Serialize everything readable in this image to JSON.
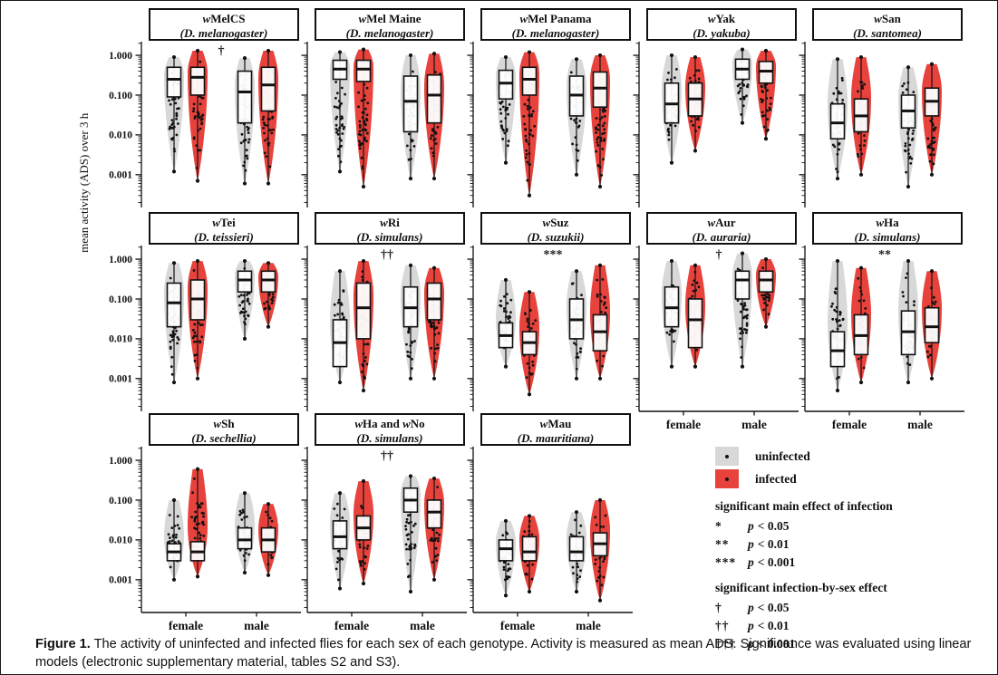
{
  "figure": {
    "y_axis_label": "mean activity (ADS) over 3 h",
    "y_ticks": [
      "1.000",
      "0.100",
      "0.010",
      "0.001"
    ],
    "x_categories": [
      "female",
      "male"
    ]
  },
  "legend": {
    "items": [
      {
        "key": "uninfected",
        "label": "uninfected",
        "color": "#d8d8d8"
      },
      {
        "key": "infected",
        "label": "infected",
        "color": "#e8423c"
      }
    ],
    "main_effect_heading": "significant main effect of infection",
    "main_effect_rows": [
      {
        "sym": "*",
        "p_var": "p",
        "cond": "< 0.05"
      },
      {
        "sym": "**",
        "p_var": "p",
        "cond": "< 0.01"
      },
      {
        "sym": "***",
        "p_var": "p",
        "cond": "< 0.001"
      }
    ],
    "interaction_heading": "significant infection-by-sex effect",
    "interaction_rows": [
      {
        "sym": "†",
        "p_var": "p",
        "cond": "< 0.05"
      },
      {
        "sym": "††",
        "p_var": "p",
        "cond": "< 0.01"
      },
      {
        "sym": "†††",
        "p_var": "p",
        "cond": "< 0.001"
      }
    ]
  },
  "caption": {
    "label": "Figure 1.",
    "text": " The activity of uninfected and infected flies for each sex of each genotype. Activity is measured as mean ADS. Significance was evaluated using linear models (electronic supplementary material, tables S2 and S3)."
  },
  "chart_data": {
    "type": "violin-box",
    "y_scale": "log",
    "ylim": [
      0.00015,
      2.2
    ],
    "ylabel": "mean activity (ADS) over 3 h",
    "y_tick_values": [
      1.0,
      0.1,
      0.01,
      0.001
    ],
    "y_tick_labels": [
      "1.000",
      "0.100",
      "0.010",
      "0.001"
    ],
    "x_categories": [
      "female",
      "male"
    ],
    "series_colors": {
      "uninfected": "#d8d8d8",
      "infected": "#e8423c"
    },
    "grid_columns": 5,
    "panels": [
      {
        "id": "wmelcs",
        "title_segments": [
          {
            "t": "w",
            "i": true
          },
          {
            "t": "MelCS"
          }
        ],
        "species": "(D. melanogaster)",
        "significance": "†",
        "violins": [
          {
            "group": "female",
            "infection": "uninfected",
            "min": 0.0012,
            "max": 0.9,
            "q1": 0.09,
            "median": 0.25,
            "q3": 0.5
          },
          {
            "group": "female",
            "infection": "infected",
            "min": 0.0007,
            "max": 1.3,
            "q1": 0.1,
            "median": 0.28,
            "q3": 0.5
          },
          {
            "group": "male",
            "infection": "uninfected",
            "min": 0.0006,
            "max": 0.85,
            "q1": 0.02,
            "median": 0.12,
            "q3": 0.4
          },
          {
            "group": "male",
            "infection": "infected",
            "min": 0.0006,
            "max": 1.3,
            "q1": 0.04,
            "median": 0.18,
            "q3": 0.5
          }
        ]
      },
      {
        "id": "wmel-maine",
        "title_segments": [
          {
            "t": "w",
            "i": true
          },
          {
            "t": "Mel Maine"
          }
        ],
        "species": "(D. melanogaster)",
        "significance": "",
        "violins": [
          {
            "group": "female",
            "infection": "uninfected",
            "min": 0.0012,
            "max": 1.2,
            "q1": 0.25,
            "median": 0.45,
            "q3": 0.75
          },
          {
            "group": "female",
            "infection": "infected",
            "min": 0.0005,
            "max": 1.4,
            "q1": 0.22,
            "median": 0.45,
            "q3": 0.75
          },
          {
            "group": "male",
            "infection": "uninfected",
            "min": 0.0008,
            "max": 1.0,
            "q1": 0.012,
            "median": 0.07,
            "q3": 0.3
          },
          {
            "group": "male",
            "infection": "infected",
            "min": 0.0008,
            "max": 1.1,
            "q1": 0.02,
            "median": 0.1,
            "q3": 0.32
          }
        ]
      },
      {
        "id": "wmel-panama",
        "title_segments": [
          {
            "t": "w",
            "i": true
          },
          {
            "t": "Mel Panama"
          }
        ],
        "species": "(D. melanogaster)",
        "significance": "",
        "violins": [
          {
            "group": "female",
            "infection": "uninfected",
            "min": 0.002,
            "max": 0.9,
            "q1": 0.08,
            "median": 0.2,
            "q3": 0.42
          },
          {
            "group": "female",
            "infection": "infected",
            "min": 0.0003,
            "max": 1.2,
            "q1": 0.1,
            "median": 0.25,
            "q3": 0.5
          },
          {
            "group": "male",
            "infection": "uninfected",
            "min": 0.001,
            "max": 0.8,
            "q1": 0.03,
            "median": 0.1,
            "q3": 0.3
          },
          {
            "group": "male",
            "infection": "infected",
            "min": 0.0005,
            "max": 1.0,
            "q1": 0.05,
            "median": 0.15,
            "q3": 0.38
          }
        ]
      },
      {
        "id": "wyak",
        "title_segments": [
          {
            "t": "w",
            "i": true
          },
          {
            "t": "Yak"
          }
        ],
        "species": "(D. yakuba)",
        "significance": "",
        "violins": [
          {
            "group": "female",
            "infection": "uninfected",
            "min": 0.002,
            "max": 1.0,
            "q1": 0.02,
            "median": 0.06,
            "q3": 0.2
          },
          {
            "group": "female",
            "infection": "infected",
            "min": 0.004,
            "max": 0.9,
            "q1": 0.03,
            "median": 0.08,
            "q3": 0.2
          },
          {
            "group": "male",
            "infection": "uninfected",
            "min": 0.02,
            "max": 1.4,
            "q1": 0.25,
            "median": 0.45,
            "q3": 0.8
          },
          {
            "group": "male",
            "infection": "infected",
            "min": 0.008,
            "max": 1.3,
            "q1": 0.2,
            "median": 0.4,
            "q3": 0.7
          }
        ]
      },
      {
        "id": "wsan",
        "title_segments": [
          {
            "t": "w",
            "i": true
          },
          {
            "t": "San"
          }
        ],
        "species": "(D. santomea)",
        "significance": "",
        "violins": [
          {
            "group": "female",
            "infection": "uninfected",
            "min": 0.0008,
            "max": 0.8,
            "q1": 0.008,
            "median": 0.02,
            "q3": 0.06
          },
          {
            "group": "female",
            "infection": "infected",
            "min": 0.001,
            "max": 0.9,
            "q1": 0.012,
            "median": 0.03,
            "q3": 0.08
          },
          {
            "group": "male",
            "infection": "uninfected",
            "min": 0.0005,
            "max": 0.5,
            "q1": 0.015,
            "median": 0.04,
            "q3": 0.1
          },
          {
            "group": "male",
            "infection": "infected",
            "min": 0.001,
            "max": 0.6,
            "q1": 0.03,
            "median": 0.07,
            "q3": 0.15
          }
        ]
      },
      {
        "id": "wtei",
        "title_segments": [
          {
            "t": "w",
            "i": true
          },
          {
            "t": "Tei"
          }
        ],
        "species": "(D. teissieri)",
        "significance": "",
        "violins": [
          {
            "group": "female",
            "infection": "uninfected",
            "min": 0.0008,
            "max": 0.8,
            "q1": 0.02,
            "median": 0.08,
            "q3": 0.25
          },
          {
            "group": "female",
            "infection": "infected",
            "min": 0.001,
            "max": 0.9,
            "q1": 0.03,
            "median": 0.1,
            "q3": 0.3
          },
          {
            "group": "male",
            "infection": "uninfected",
            "min": 0.01,
            "max": 0.9,
            "q1": 0.15,
            "median": 0.3,
            "q3": 0.5
          },
          {
            "group": "male",
            "infection": "infected",
            "min": 0.02,
            "max": 0.8,
            "q1": 0.15,
            "median": 0.3,
            "q3": 0.5
          }
        ]
      },
      {
        "id": "wri",
        "title_segments": [
          {
            "t": "w",
            "i": true
          },
          {
            "t": "Ri"
          }
        ],
        "species": "(D. simulans)",
        "significance": "††",
        "violins": [
          {
            "group": "female",
            "infection": "uninfected",
            "min": 0.0008,
            "max": 0.5,
            "q1": 0.002,
            "median": 0.008,
            "q3": 0.03
          },
          {
            "group": "female",
            "infection": "infected",
            "min": 0.0005,
            "max": 0.9,
            "q1": 0.01,
            "median": 0.06,
            "q3": 0.25
          },
          {
            "group": "male",
            "infection": "uninfected",
            "min": 0.001,
            "max": 0.7,
            "q1": 0.02,
            "median": 0.06,
            "q3": 0.2
          },
          {
            "group": "male",
            "infection": "infected",
            "min": 0.001,
            "max": 0.6,
            "q1": 0.03,
            "median": 0.1,
            "q3": 0.25
          }
        ]
      },
      {
        "id": "wsuz",
        "title_segments": [
          {
            "t": "w",
            "i": true
          },
          {
            "t": "Suz"
          }
        ],
        "species": "(D. suzukii)",
        "significance": "***",
        "violins": [
          {
            "group": "female",
            "infection": "uninfected",
            "min": 0.002,
            "max": 0.3,
            "q1": 0.006,
            "median": 0.012,
            "q3": 0.025
          },
          {
            "group": "female",
            "infection": "infected",
            "min": 0.0004,
            "max": 0.15,
            "q1": 0.004,
            "median": 0.008,
            "q3": 0.015
          },
          {
            "group": "male",
            "infection": "uninfected",
            "min": 0.001,
            "max": 0.5,
            "q1": 0.01,
            "median": 0.03,
            "q3": 0.1
          },
          {
            "group": "male",
            "infection": "infected",
            "min": 0.001,
            "max": 0.7,
            "q1": 0.005,
            "median": 0.015,
            "q3": 0.04
          }
        ]
      },
      {
        "id": "waur",
        "title_segments": [
          {
            "t": "w",
            "i": true
          },
          {
            "t": "Aur"
          }
        ],
        "species": "(D. auraria)",
        "significance": "†",
        "violins": [
          {
            "group": "female",
            "infection": "uninfected",
            "min": 0.002,
            "max": 0.9,
            "q1": 0.02,
            "median": 0.06,
            "q3": 0.2
          },
          {
            "group": "female",
            "infection": "infected",
            "min": 0.002,
            "max": 0.7,
            "q1": 0.006,
            "median": 0.03,
            "q3": 0.1
          },
          {
            "group": "male",
            "infection": "uninfected",
            "min": 0.002,
            "max": 1.4,
            "q1": 0.1,
            "median": 0.3,
            "q3": 0.5
          },
          {
            "group": "male",
            "infection": "infected",
            "min": 0.02,
            "max": 1.0,
            "q1": 0.15,
            "median": 0.3,
            "q3": 0.5
          }
        ]
      },
      {
        "id": "wha",
        "title_segments": [
          {
            "t": "w",
            "i": true
          },
          {
            "t": "Ha"
          }
        ],
        "species": "(D. simulans)",
        "significance": "**",
        "violins": [
          {
            "group": "female",
            "infection": "uninfected",
            "min": 0.0005,
            "max": 0.9,
            "q1": 0.002,
            "median": 0.005,
            "q3": 0.015
          },
          {
            "group": "female",
            "infection": "infected",
            "min": 0.0008,
            "max": 0.6,
            "q1": 0.004,
            "median": 0.012,
            "q3": 0.04
          },
          {
            "group": "male",
            "infection": "uninfected",
            "min": 0.0008,
            "max": 0.9,
            "q1": 0.004,
            "median": 0.015,
            "q3": 0.05
          },
          {
            "group": "male",
            "infection": "infected",
            "min": 0.001,
            "max": 0.5,
            "q1": 0.008,
            "median": 0.02,
            "q3": 0.06
          }
        ]
      },
      {
        "id": "wsh",
        "title_segments": [
          {
            "t": "w",
            "i": true
          },
          {
            "t": "Sh"
          }
        ],
        "species": "(D. sechellia)",
        "significance": "",
        "violins": [
          {
            "group": "female",
            "infection": "uninfected",
            "min": 0.001,
            "max": 0.1,
            "q1": 0.003,
            "median": 0.005,
            "q3": 0.008
          },
          {
            "group": "female",
            "infection": "infected",
            "min": 0.0012,
            "max": 0.6,
            "q1": 0.003,
            "median": 0.005,
            "q3": 0.009
          },
          {
            "group": "male",
            "infection": "uninfected",
            "min": 0.0015,
            "max": 0.15,
            "q1": 0.006,
            "median": 0.01,
            "q3": 0.02
          },
          {
            "group": "male",
            "infection": "infected",
            "min": 0.0013,
            "max": 0.08,
            "q1": 0.005,
            "median": 0.01,
            "q3": 0.02
          }
        ]
      },
      {
        "id": "wha-and-wno",
        "title_segments": [
          {
            "t": "w",
            "i": true
          },
          {
            "t": "Ha and "
          },
          {
            "t": "w",
            "i": true
          },
          {
            "t": "No"
          }
        ],
        "species": "(D. simulans)",
        "significance": "††",
        "violins": [
          {
            "group": "female",
            "infection": "uninfected",
            "min": 0.0006,
            "max": 0.15,
            "q1": 0.006,
            "median": 0.012,
            "q3": 0.03
          },
          {
            "group": "female",
            "infection": "infected",
            "min": 0.0008,
            "max": 0.3,
            "q1": 0.01,
            "median": 0.02,
            "q3": 0.04
          },
          {
            "group": "male",
            "infection": "uninfected",
            "min": 0.0005,
            "max": 0.4,
            "q1": 0.05,
            "median": 0.1,
            "q3": 0.2
          },
          {
            "group": "male",
            "infection": "infected",
            "min": 0.001,
            "max": 0.35,
            "q1": 0.02,
            "median": 0.05,
            "q3": 0.1
          }
        ]
      },
      {
        "id": "wmau",
        "title_segments": [
          {
            "t": "w",
            "i": true
          },
          {
            "t": "Mau"
          }
        ],
        "species": "(D. mauritiana)",
        "significance": "",
        "violins": [
          {
            "group": "female",
            "infection": "uninfected",
            "min": 0.0004,
            "max": 0.03,
            "q1": 0.003,
            "median": 0.006,
            "q3": 0.01
          },
          {
            "group": "female",
            "infection": "infected",
            "min": 0.0005,
            "max": 0.04,
            "q1": 0.003,
            "median": 0.005,
            "q3": 0.012
          },
          {
            "group": "male",
            "infection": "uninfected",
            "min": 0.0005,
            "max": 0.05,
            "q1": 0.003,
            "median": 0.005,
            "q3": 0.012
          },
          {
            "group": "male",
            "infection": "infected",
            "min": 0.0003,
            "max": 0.1,
            "q1": 0.004,
            "median": 0.008,
            "q3": 0.015
          }
        ]
      }
    ]
  }
}
